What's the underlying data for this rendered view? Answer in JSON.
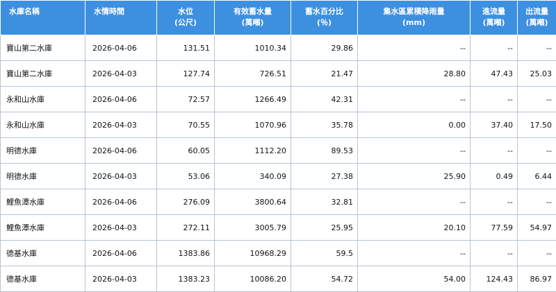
{
  "headers": [
    {
      "lines": [
        "水庫名稱"
      ]
    },
    {
      "lines": [
        "水情時間"
      ]
    },
    {
      "lines": [
        "水位",
        "(公尺)"
      ]
    },
    {
      "lines": [
        "有效蓄水量",
        "(萬噸)"
      ]
    },
    {
      "lines": [
        "蓄水百分比",
        "(％)"
      ]
    },
    {
      "lines": [
        "集水區累積降雨量",
        "(mm)"
      ]
    },
    {
      "lines": [
        "進流量",
        "(萬噸)"
      ]
    },
    {
      "lines": [
        "出流量",
        "(萬噸)"
      ]
    }
  ],
  "rows": [
    [
      "寶山第二水庫",
      "2026-04-06",
      "131.51",
      "1010.34",
      "29.86",
      "--",
      "--",
      "--"
    ],
    [
      "寶山第二水庫",
      "2026-04-03",
      "127.74",
      "726.51",
      "21.47",
      "28.80",
      "47.43",
      "25.03"
    ],
    [
      "永和山水庫",
      "2026-04-06",
      "72.57",
      "1266.49",
      "42.31",
      "--",
      "--",
      "--"
    ],
    [
      "永和山水庫",
      "2026-04-03",
      "70.55",
      "1070.96",
      "35.78",
      "0.00",
      "37.40",
      "17.50"
    ],
    [
      "明德水庫",
      "2026-04-06",
      "60.05",
      "1112.20",
      "89.53",
      "--",
      "--",
      "--"
    ],
    [
      "明德水庫",
      "2026-04-03",
      "53.06",
      "340.09",
      "27.38",
      "25.90",
      "0.49",
      "6.44"
    ],
    [
      "鯉魚潭水庫",
      "2026-04-06",
      "276.09",
      "3800.64",
      "32.81",
      "--",
      "--",
      "--"
    ],
    [
      "鯉魚潭水庫",
      "2026-04-03",
      "272.11",
      "3005.79",
      "25.95",
      "20.10",
      "77.59",
      "54.97"
    ],
    [
      "德基水庫",
      "2026-04-06",
      "1383.86",
      "10968.29",
      "59.5",
      "--",
      "--",
      "--"
    ],
    [
      "德基水庫",
      "2026-04-03",
      "1383.23",
      "10086.20",
      "54.72",
      "54.00",
      "124.43",
      "86.97"
    ]
  ],
  "colors": {
    "header_bg": "#3d8fe0",
    "header_text": "#ffffff",
    "grid_line": "#b7c5d2"
  }
}
